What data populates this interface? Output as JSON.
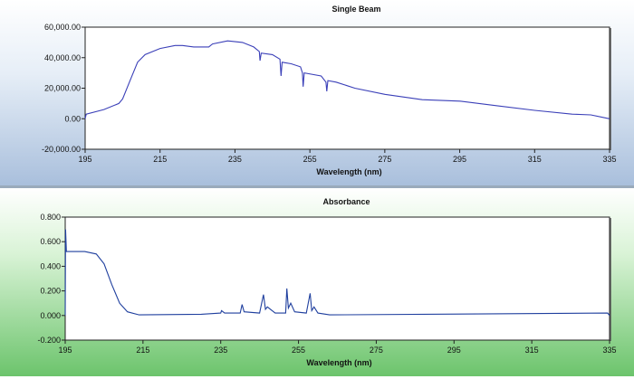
{
  "chart_data": [
    {
      "type": "line",
      "title": "Single Beam",
      "xlabel": "Wavelength (nm)",
      "ylabel": "",
      "xlim": [
        195,
        335
      ],
      "ylim": [
        -20000,
        60000
      ],
      "xticks": [
        "195",
        "215",
        "235",
        "255",
        "275",
        "295",
        "315",
        "335"
      ],
      "xtick_values": [
        195,
        215,
        235,
        255,
        275,
        295,
        315,
        335
      ],
      "yticks": [
        "60,000.00",
        "40,000.00",
        "20,000.00",
        "0.00",
        "-20,000.00"
      ],
      "ytick_values": [
        60000,
        40000,
        20000,
        0,
        -20000
      ],
      "color": "#3a3fb8",
      "x": [
        195,
        195.3,
        200,
        204,
        205,
        207,
        209,
        211,
        215,
        219,
        221,
        224,
        228,
        229,
        233,
        237,
        240,
        241.5,
        241.7,
        242,
        245,
        247,
        247.3,
        247.6,
        250,
        252.5,
        253,
        253.2,
        253.5,
        258,
        259.3,
        259.5,
        259.8,
        262,
        267,
        275,
        285,
        295,
        305,
        315,
        325,
        330,
        335
      ],
      "y": [
        0,
        3000,
        6000,
        10000,
        13000,
        25000,
        37000,
        42000,
        46000,
        48000,
        48000,
        47000,
        47000,
        49000,
        51000,
        50000,
        47000,
        44000,
        38000,
        43000,
        42000,
        39000,
        28000,
        37000,
        36000,
        34000,
        30000,
        21000,
        30000,
        28000,
        24000,
        18000,
        25000,
        24000,
        20000,
        16000,
        12500,
        11500,
        8500,
        5500,
        3000,
        2500,
        0
      ]
    },
    {
      "type": "line",
      "title": "Absorbance",
      "xlabel": "Wavelength (nm)",
      "ylabel": "",
      "xlim": [
        195,
        335
      ],
      "ylim": [
        -0.2,
        0.8
      ],
      "xticks": [
        "195",
        "215",
        "235",
        "255",
        "275",
        "295",
        "315",
        "335"
      ],
      "xtick_values": [
        195,
        215,
        235,
        255,
        275,
        295,
        315,
        335
      ],
      "yticks": [
        "0.800",
        "0.600",
        "0.400",
        "0.200",
        "0.000",
        "-0.200"
      ],
      "ytick_values": [
        0.8,
        0.6,
        0.4,
        0.2,
        0,
        -0.2
      ],
      "color": "#1f3f9e",
      "x": [
        195,
        195.1,
        195.3,
        200,
        203,
        205,
        207,
        209,
        211,
        214,
        230,
        235,
        235.2,
        236,
        240,
        240.5,
        241,
        245,
        246,
        246.5,
        247,
        249,
        251.7,
        252,
        252.4,
        253,
        254,
        257,
        258,
        258.4,
        259,
        260,
        263,
        334.5,
        335
      ],
      "y": [
        0,
        0.7,
        0.52,
        0.52,
        0.5,
        0.42,
        0.25,
        0.1,
        0.03,
        0.005,
        0.01,
        0.02,
        0.04,
        0.02,
        0.02,
        0.09,
        0.03,
        0.02,
        0.17,
        0.05,
        0.07,
        0.02,
        0.02,
        0.22,
        0.06,
        0.1,
        0.03,
        0.02,
        0.18,
        0.04,
        0.07,
        0.02,
        0.005,
        0.02,
        0.0
      ]
    }
  ]
}
